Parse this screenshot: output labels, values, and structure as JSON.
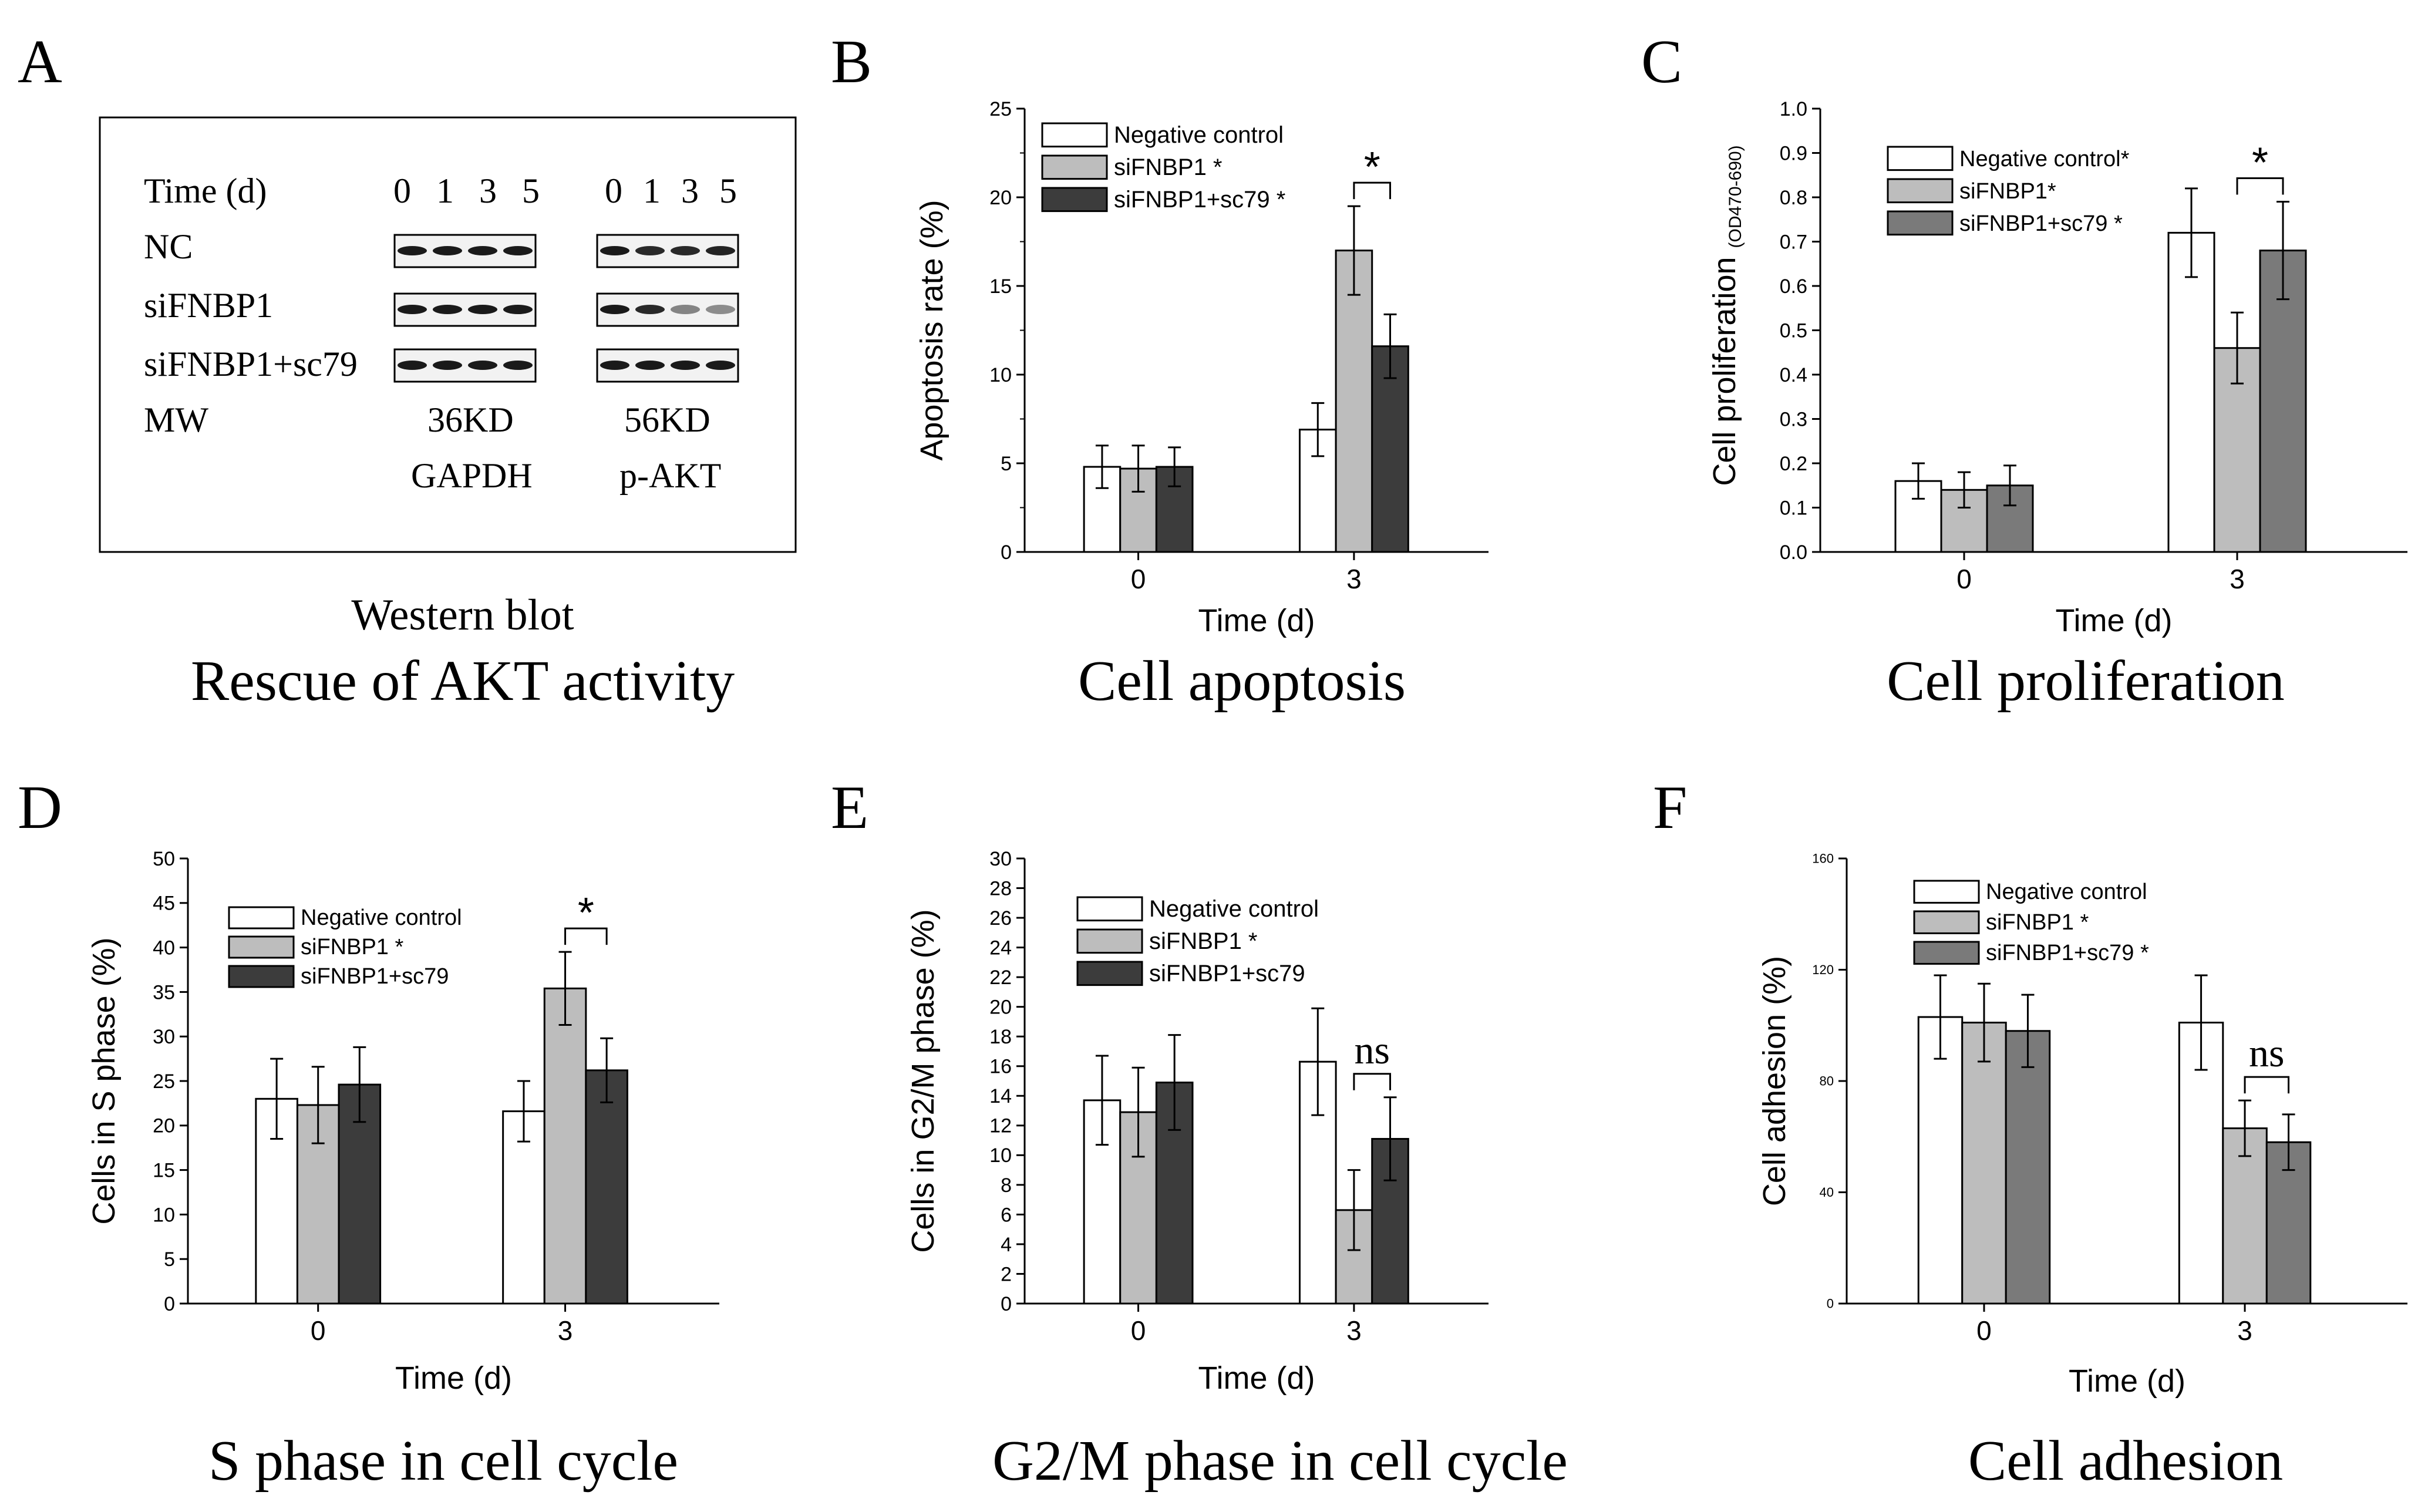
{
  "panels": [
    {
      "letter": "A",
      "subtitle": "Western blot",
      "caption": "Rescue of AKT activity",
      "blot": {
        "header_label": "Time (d)",
        "gapdh_lanes": "0 1 3 5",
        "akt_lanes": "0 1 3 5",
        "rows": [
          {
            "label": "NC",
            "gapdh_intensity": [
              1,
              1,
              1,
              1
            ],
            "akt_intensity": [
              1,
              0.9,
              0.9,
              0.95
            ]
          },
          {
            "label": "siFNBP1",
            "gapdh_intensity": [
              1,
              1,
              1,
              1
            ],
            "akt_intensity": [
              1,
              0.9,
              0.35,
              0.3
            ]
          },
          {
            "label": "siFNBP1+sc79",
            "gapdh_intensity": [
              1,
              1,
              1,
              1
            ],
            "akt_intensity": [
              1,
              1,
              1,
              1
            ]
          }
        ],
        "mw_label": "MW",
        "gapdh_mw": "36KD",
        "akt_mw": "56KD",
        "gapdh_name": "GAPDH",
        "akt_name": "p-AKT"
      }
    },
    {
      "letter": "B",
      "caption": "Cell apoptosis"
    },
    {
      "letter": "C",
      "caption": "Cell proliferation"
    },
    {
      "letter": "D",
      "caption": "S phase in cell cycle"
    },
    {
      "letter": "E",
      "caption": "G2/M phase in cell cycle"
    },
    {
      "letter": "F",
      "caption": "Cell  adhesion"
    }
  ],
  "colors": {
    "negative_control": "#ffffff",
    "sifnbp1": "#bdbdbd",
    "sifnbp1_sc79_dark": "#3c3c3c",
    "sifnbp1_sc79_mid": "#7a7a7a",
    "axis": "#000000",
    "band": "#1a1a1a"
  },
  "chart_data": [
    {
      "panel": "B",
      "type": "bar",
      "categories": [
        "0",
        "3"
      ],
      "xlabel": "Time (d)",
      "ylabel": "Apoptosis rate (%)",
      "ylim": [
        0,
        25
      ],
      "yticks": [
        "0",
        "5",
        "10",
        "15",
        "20",
        "25"
      ],
      "legend_position": "top-left",
      "series": [
        {
          "name": "Negative control",
          "values": [
            4.8,
            6.9
          ],
          "errors": [
            1.2,
            1.5
          ],
          "color_key": "negative_control"
        },
        {
          "name": "siFNBP1 *",
          "values": [
            4.7,
            17.0
          ],
          "errors": [
            1.3,
            2.5
          ],
          "color_key": "sifnbp1"
        },
        {
          "name": "siFNBP1+sc79 *",
          "values": [
            4.8,
            11.6
          ],
          "errors": [
            1.1,
            1.8
          ],
          "color_key": "sifnbp1_sc79_dark"
        }
      ],
      "annotation": {
        "text": "*",
        "category_index": 1,
        "between": [
          1,
          2
        ]
      }
    },
    {
      "panel": "C",
      "type": "bar",
      "categories": [
        "0",
        "3"
      ],
      "xlabel": "Time (d)",
      "ylabel": "Cell proliferation",
      "ylabel_subscript": "(OD470-690)",
      "ylim": [
        0,
        1.0
      ],
      "yticks": [
        "0.0",
        "0.1",
        "0.2",
        "0.3",
        "0.4",
        "0.5",
        "0.6",
        "0.7",
        "0.8",
        "0.9",
        "1.0"
      ],
      "legend_position": "top-left",
      "series": [
        {
          "name": "Negative control*",
          "values": [
            0.16,
            0.72
          ],
          "errors": [
            0.04,
            0.1
          ],
          "color_key": "negative_control"
        },
        {
          "name": "siFNBP1*",
          "values": [
            0.14,
            0.46
          ],
          "errors": [
            0.04,
            0.08
          ],
          "color_key": "sifnbp1"
        },
        {
          "name": "siFNBP1+sc79 *",
          "values": [
            0.15,
            0.68
          ],
          "errors": [
            0.045,
            0.11
          ],
          "color_key": "sifnbp1_sc79_mid"
        }
      ],
      "annotation": {
        "text": "*",
        "category_index": 1,
        "between": [
          1,
          2
        ]
      }
    },
    {
      "panel": "D",
      "type": "bar",
      "categories": [
        "0",
        "3"
      ],
      "xlabel": "Time (d)",
      "ylabel": "Cells in S phase (%)",
      "ylim": [
        0,
        50
      ],
      "yticks": [
        "0",
        "5",
        "10",
        "15",
        "20",
        "25",
        "30",
        "35",
        "40",
        "45",
        "50"
      ],
      "legend_position": "top-left",
      "series": [
        {
          "name": "Negative control",
          "values": [
            23.0,
            21.6
          ],
          "errors": [
            4.5,
            3.4
          ],
          "color_key": "negative_control"
        },
        {
          "name": "siFNBP1 *",
          "values": [
            22.3,
            35.4
          ],
          "errors": [
            4.3,
            4.1
          ],
          "color_key": "sifnbp1"
        },
        {
          "name": "siFNBP1+sc79",
          "values": [
            24.6,
            26.2
          ],
          "errors": [
            4.2,
            3.6
          ],
          "color_key": "sifnbp1_sc79_dark"
        }
      ],
      "annotation": {
        "text": "*",
        "category_index": 1,
        "between": [
          1,
          2
        ]
      }
    },
    {
      "panel": "E",
      "type": "bar",
      "categories": [
        "0",
        "3"
      ],
      "xlabel": "Time (d)",
      "ylabel": "Cells in G2/M phase (%)",
      "ylim": [
        0,
        30
      ],
      "yticks": [
        "0",
        "2",
        "4",
        "6",
        "8",
        "10",
        "12",
        "14",
        "16",
        "18",
        "20",
        "22",
        "24",
        "26",
        "28",
        "30"
      ],
      "legend_position": "top-left",
      "series": [
        {
          "name": "Negative control",
          "values": [
            13.7,
            16.3
          ],
          "errors": [
            3.0,
            3.6
          ],
          "color_key": "negative_control"
        },
        {
          "name": "siFNBP1 *",
          "values": [
            12.9,
            6.3
          ],
          "errors": [
            3.0,
            2.7
          ],
          "color_key": "sifnbp1"
        },
        {
          "name": "siFNBP1+sc79",
          "values": [
            14.9,
            11.1
          ],
          "errors": [
            3.2,
            2.8
          ],
          "color_key": "sifnbp1_sc79_dark"
        }
      ],
      "annotation": {
        "text": "ns",
        "category_index": 1,
        "between": [
          1,
          2
        ]
      }
    },
    {
      "panel": "F",
      "type": "bar",
      "categories": [
        "0",
        "3"
      ],
      "xlabel": "Time (d)",
      "ylabel": "Cell adhesion (%)",
      "ylim": [
        0,
        160
      ],
      "yticks": [
        "0",
        "40",
        "80",
        "120",
        "160"
      ],
      "legend_position": "top-left",
      "series": [
        {
          "name": "Negative control",
          "values": [
            103,
            101
          ],
          "errors": [
            15,
            17
          ],
          "color_key": "negative_control"
        },
        {
          "name": "siFNBP1 *",
          "values": [
            101,
            63
          ],
          "errors": [
            14,
            10
          ],
          "color_key": "sifnbp1"
        },
        {
          "name": "siFNBP1+sc79 *",
          "values": [
            98,
            58
          ],
          "errors": [
            13,
            10
          ],
          "color_key": "sifnbp1_sc79_mid"
        }
      ],
      "annotation": {
        "text": "ns",
        "category_index": 1,
        "between": [
          1,
          2
        ]
      }
    }
  ]
}
